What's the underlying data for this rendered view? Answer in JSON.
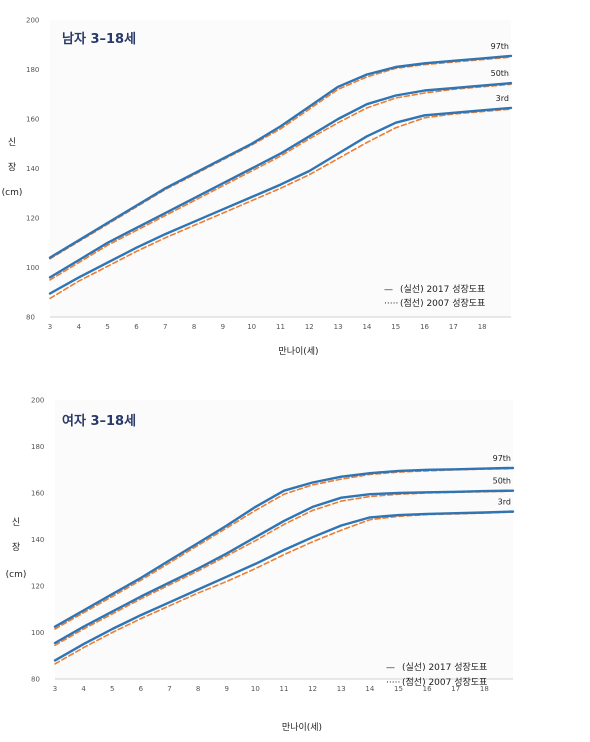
{
  "chart_data": [
    {
      "type": "line",
      "title": "남자 3–18세",
      "xlabel": "만나이(세)",
      "ylabel_chars": [
        "신",
        "장"
      ],
      "ylabel_unit": "(cm)",
      "xlim": [
        3,
        19
      ],
      "ylim": [
        80,
        200
      ],
      "xticks": [
        3,
        4,
        5,
        6,
        7,
        8,
        9,
        10,
        11,
        12,
        13,
        14,
        15,
        16,
        17,
        18
      ],
      "yticks": [
        80,
        100,
        120,
        140,
        160,
        180,
        200
      ],
      "grid": false,
      "legend": {
        "position": "bottom-right",
        "entries": [
          {
            "mark": "—",
            "label": "(실선) 2017 성장도표",
            "style": "solid",
            "color": "#2e75b6"
          },
          {
            "mark": "·····",
            "label": "(점선) 2007 성장도표",
            "style": "dashed",
            "color": "#ed7d31"
          }
        ]
      },
      "x": [
        3,
        4,
        5,
        6,
        7,
        8,
        9,
        10,
        11,
        12,
        13,
        14,
        15,
        16,
        17,
        18,
        19
      ],
      "series": [
        {
          "name": "97th",
          "style": "solid",
          "color": "#2e75b6",
          "values": [
            104,
            111,
            118,
            125,
            132,
            138,
            144,
            150,
            157,
            165,
            173,
            178,
            181,
            182.5,
            183.5,
            184.5,
            185.5
          ]
        },
        {
          "name": "97th",
          "style": "dashed",
          "color": "#ed7d31",
          "values": [
            103.5,
            110.5,
            117.5,
            124.5,
            131.5,
            137.5,
            143.5,
            149.5,
            156,
            164,
            172,
            177,
            180.5,
            182,
            183,
            184,
            185
          ]
        },
        {
          "name": "50th",
          "style": "solid",
          "color": "#2e75b6",
          "values": [
            96,
            103,
            110,
            116,
            122,
            128,
            134,
            140,
            146,
            153,
            160,
            166,
            169.5,
            171.5,
            172.5,
            173.5,
            174.5
          ]
        },
        {
          "name": "50th",
          "style": "dashed",
          "color": "#ed7d31",
          "values": [
            95,
            102,
            109,
            115,
            121,
            127,
            133,
            139,
            145,
            152,
            158.5,
            164.5,
            168.5,
            170.5,
            172,
            173,
            174
          ]
        },
        {
          "name": "3rd",
          "style": "solid",
          "color": "#2e75b6",
          "values": [
            89.5,
            96,
            102,
            108,
            113.5,
            118.5,
            123.5,
            128.5,
            133.5,
            139,
            146,
            153,
            158.5,
            161.5,
            162.5,
            163.5,
            164.5
          ]
        },
        {
          "name": "3rd",
          "style": "dashed",
          "color": "#ed7d31",
          "values": [
            87.5,
            94.5,
            100.5,
            106.5,
            112,
            117,
            122,
            127,
            132,
            137.5,
            144,
            150.5,
            156.5,
            160.5,
            162,
            163,
            164
          ]
        }
      ]
    },
    {
      "type": "line",
      "title": "여자 3–18세",
      "xlabel": "만나이(세)",
      "ylabel_chars": [
        "신",
        "장"
      ],
      "ylabel_unit": "(cm)",
      "xlim": [
        3,
        19
      ],
      "ylim": [
        80,
        200
      ],
      "xticks": [
        3,
        4,
        5,
        6,
        7,
        8,
        9,
        10,
        11,
        12,
        13,
        14,
        15,
        16,
        17,
        18
      ],
      "yticks": [
        80,
        100,
        120,
        140,
        160,
        180,
        200
      ],
      "grid": false,
      "legend": {
        "position": "bottom-right",
        "entries": [
          {
            "mark": "—",
            "label": "(실선) 2017 성장도표",
            "style": "solid",
            "color": "#2e75b6"
          },
          {
            "mark": "·····",
            "label": "(점선) 2007 성장도표",
            "style": "dashed",
            "color": "#ed7d31"
          }
        ]
      },
      "x": [
        3,
        4,
        5,
        6,
        7,
        8,
        9,
        10,
        11,
        12,
        13,
        14,
        15,
        16,
        17,
        18,
        19
      ],
      "series": [
        {
          "name": "97th",
          "style": "solid",
          "color": "#2e75b6",
          "values": [
            102.5,
            109.5,
            116.5,
            123.5,
            131,
            138.5,
            146,
            154,
            161,
            164.5,
            167,
            168.5,
            169.5,
            170,
            170.2,
            170.5,
            170.8
          ]
        },
        {
          "name": "97th",
          "style": "dashed",
          "color": "#ed7d31",
          "values": [
            101.5,
            108.5,
            115.5,
            122.5,
            130,
            137.5,
            145,
            152.5,
            159.5,
            163.5,
            166,
            168,
            169,
            169.5,
            170,
            170.3,
            170.5
          ]
        },
        {
          "name": "50th",
          "style": "solid",
          "color": "#2e75b6",
          "values": [
            95.5,
            102.5,
            109,
            115.5,
            121.5,
            127.5,
            134,
            141,
            148,
            154,
            158,
            159.5,
            160,
            160.3,
            160.5,
            160.8,
            161
          ]
        },
        {
          "name": "50th",
          "style": "dashed",
          "color": "#ed7d31",
          "values": [
            94.5,
            101.5,
            108,
            114.5,
            120.5,
            126.5,
            133,
            139.5,
            146.5,
            152.5,
            156.5,
            158.5,
            159.5,
            160,
            160.3,
            160.5,
            160.8
          ]
        },
        {
          "name": "3rd",
          "style": "solid",
          "color": "#2e75b6",
          "values": [
            88,
            95,
            101.5,
            107.5,
            113,
            118.5,
            124,
            129.5,
            135.5,
            141,
            146,
            149.5,
            150.5,
            151,
            151.3,
            151.6,
            152
          ]
        },
        {
          "name": "3rd",
          "style": "dashed",
          "color": "#ed7d31",
          "values": [
            86.5,
            93.5,
            100,
            106,
            111.5,
            117,
            122,
            127.5,
            133.5,
            139,
            144,
            148.5,
            150,
            150.7,
            151,
            151.4,
            151.8
          ]
        }
      ]
    }
  ]
}
